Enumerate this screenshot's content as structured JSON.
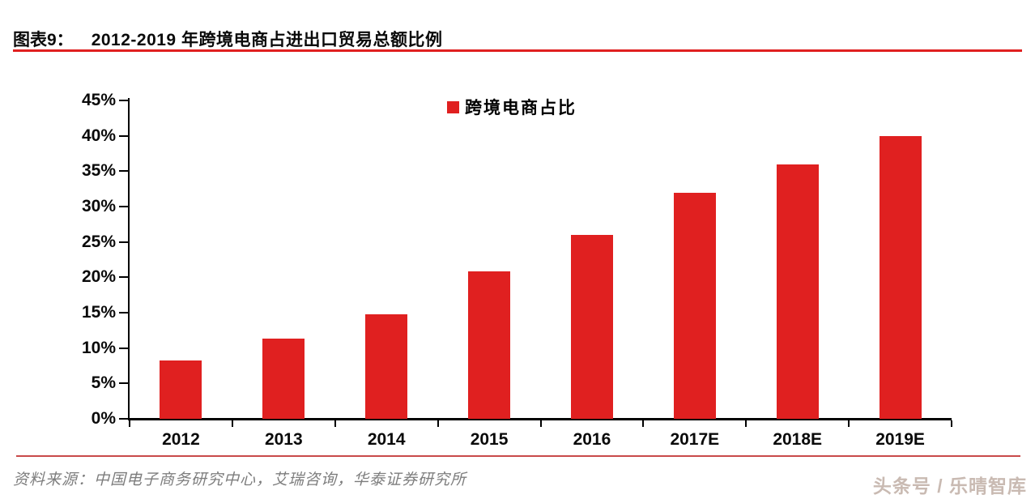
{
  "header": {
    "label": "图表9：",
    "title": "2012-2019 年跨境电商占进出口贸易总额比例"
  },
  "legend": {
    "label": "跨境电商占比"
  },
  "chart_data": {
    "type": "bar",
    "title": "2012-2019 年跨境电商占进出口贸易总额比例",
    "categories": [
      "2012",
      "2013",
      "2014",
      "2015",
      "2016",
      "2017E",
      "2018E",
      "2019E"
    ],
    "series": [
      {
        "name": "跨境电商占比",
        "values": [
          8.2,
          11.3,
          14.8,
          20.8,
          26.0,
          32.0,
          36.0,
          40.0
        ]
      }
    ],
    "xlabel": "",
    "ylabel": "",
    "ylim": [
      0,
      45
    ],
    "ytick_step": 5,
    "ytick_labels": [
      "0%",
      "5%",
      "10%",
      "15%",
      "20%",
      "25%",
      "30%",
      "35%",
      "40%",
      "45%"
    ],
    "grid": false,
    "legend_position": "top-center",
    "bar_color": "#e02020"
  },
  "footer": {
    "source": "资料来源：中国电子商务研究中心，艾瑞咨询，华泰证券研究所",
    "watermark": "头条号 / 乐晴智库"
  },
  "colors": {
    "bar_red": "#e02020",
    "header_rule_red": "#e02020",
    "footer_rule_red": "#c94a4a",
    "axis_black": "#000000",
    "source_gray": "#7d7d7d",
    "watermark_gray": "#c9bab2"
  }
}
